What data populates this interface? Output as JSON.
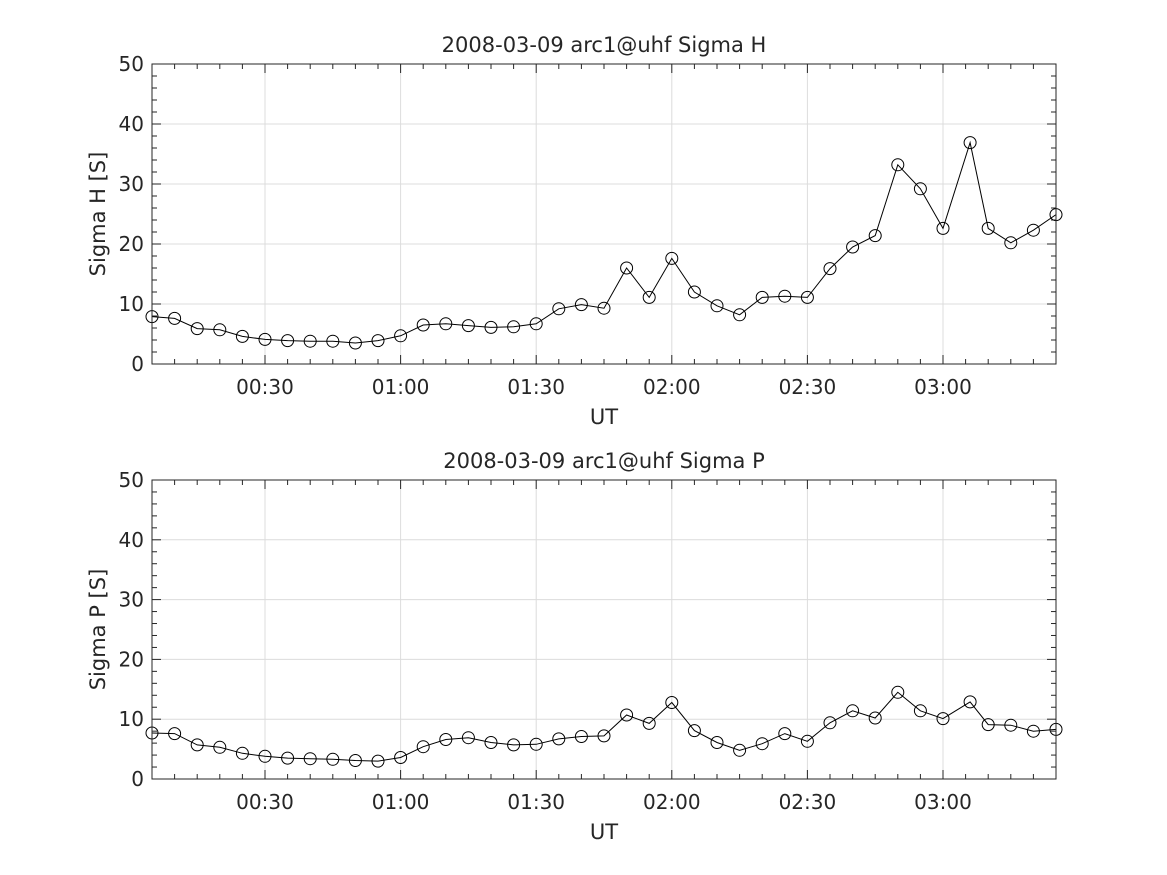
{
  "chart_data": [
    {
      "type": "line",
      "title": "2008-03-09  arc1@uhf Sigma H",
      "xlabel": "UT",
      "ylabel": "Sigma H [S]",
      "xlim": [
        "00:05",
        "03:25"
      ],
      "ylim": [
        0,
        50
      ],
      "xticks": [
        "00:30",
        "01:00",
        "01:30",
        "02:00",
        "02:30",
        "03:00"
      ],
      "yticks": [
        0,
        10,
        20,
        30,
        40,
        50
      ],
      "grid": true,
      "marker": "open-circle",
      "line_color": "#000000",
      "series": [
        {
          "x": [
            "00:05",
            "00:10",
            "00:15",
            "00:20",
            "00:25",
            "00:30",
            "00:35",
            "00:40",
            "00:45",
            "00:50",
            "00:55",
            "01:00",
            "01:05",
            "01:10",
            "01:15",
            "01:20",
            "01:25",
            "01:30",
            "01:35",
            "01:40",
            "01:45",
            "01:50",
            "01:55",
            "02:00",
            "02:05",
            "02:10",
            "02:15",
            "02:20",
            "02:25",
            "02:30",
            "02:35",
            "02:40",
            "02:45",
            "02:50",
            "02:55",
            "03:00",
            "03:06",
            "03:10",
            "03:15",
            "03:20",
            "03:25"
          ],
          "values": [
            7.9,
            7.6,
            5.9,
            5.7,
            4.6,
            4.1,
            3.9,
            3.8,
            3.8,
            3.5,
            3.9,
            4.7,
            6.5,
            6.7,
            6.4,
            6.1,
            6.2,
            6.7,
            9.2,
            9.9,
            9.3,
            16.0,
            11.1,
            17.6,
            12.0,
            9.7,
            8.2,
            11.1,
            11.3,
            11.1,
            15.9,
            19.5,
            21.4,
            33.2,
            29.2,
            22.6,
            36.9,
            22.6,
            20.2,
            22.3,
            24.9
          ]
        }
      ]
    },
    {
      "type": "line",
      "title": "2008-03-09  arc1@uhf Sigma P",
      "xlabel": "UT",
      "ylabel": "Sigma P [S]",
      "xlim": [
        "00:05",
        "03:25"
      ],
      "ylim": [
        0,
        50
      ],
      "xticks": [
        "00:30",
        "01:00",
        "01:30",
        "02:00",
        "02:30",
        "03:00"
      ],
      "yticks": [
        0,
        10,
        20,
        30,
        40,
        50
      ],
      "grid": true,
      "marker": "open-circle",
      "line_color": "#000000",
      "series": [
        {
          "x": [
            "00:05",
            "00:10",
            "00:15",
            "00:20",
            "00:25",
            "00:30",
            "00:35",
            "00:40",
            "00:45",
            "00:50",
            "00:55",
            "01:00",
            "01:05",
            "01:10",
            "01:15",
            "01:20",
            "01:25",
            "01:30",
            "01:35",
            "01:40",
            "01:45",
            "01:50",
            "01:55",
            "02:00",
            "02:05",
            "02:10",
            "02:15",
            "02:20",
            "02:25",
            "02:30",
            "02:35",
            "02:40",
            "02:45",
            "02:50",
            "02:55",
            "03:00",
            "03:06",
            "03:10",
            "03:15",
            "03:20",
            "03:25"
          ],
          "values": [
            7.7,
            7.6,
            5.7,
            5.3,
            4.3,
            3.8,
            3.5,
            3.4,
            3.3,
            3.1,
            3.0,
            3.6,
            5.4,
            6.6,
            6.9,
            6.1,
            5.7,
            5.8,
            6.7,
            7.1,
            7.2,
            10.7,
            9.3,
            12.8,
            8.1,
            6.1,
            4.8,
            5.9,
            7.6,
            6.3,
            9.4,
            11.4,
            10.2,
            14.5,
            11.4,
            10.1,
            12.9,
            9.1,
            9.0,
            8.0,
            8.3
          ]
        }
      ]
    }
  ]
}
